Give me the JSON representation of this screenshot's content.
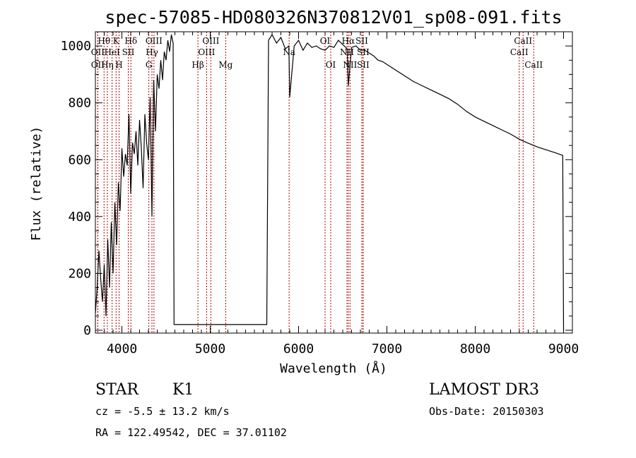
{
  "chart_data": {
    "type": "line",
    "title": "spec-57085-HD080326N370812V01_sp08-091.fits",
    "xlabel": "Wavelength (Å)",
    "ylabel": "Flux (relative)",
    "xlim": [
      3700,
      9100
    ],
    "ylim": [
      -10,
      1050
    ],
    "x_ticks": [
      4000,
      5000,
      6000,
      7000,
      8000,
      9000
    ],
    "y_ticks": [
      0,
      200,
      400,
      600,
      800,
      1000
    ],
    "gap": [
      4590,
      5640
    ],
    "series": [
      {
        "name": "spectrum",
        "x": [
          3700,
          3720,
          3740,
          3760,
          3780,
          3800,
          3820,
          3840,
          3860,
          3880,
          3900,
          3920,
          3940,
          3960,
          3980,
          4000,
          4020,
          4040,
          4060,
          4080,
          4100,
          4120,
          4140,
          4160,
          4180,
          4200,
          4220,
          4240,
          4260,
          4280,
          4300,
          4320,
          4340,
          4360,
          4380,
          4400,
          4420,
          4440,
          4460,
          4480,
          4500,
          4520,
          4540,
          4560,
          4580,
          4590,
          5640,
          5660,
          5700,
          5750,
          5800,
          5850,
          5890,
          5900,
          5950,
          6000,
          6050,
          6100,
          6150,
          6200,
          6250,
          6300,
          6350,
          6400,
          6450,
          6500,
          6550,
          6563,
          6600,
          6650,
          6700,
          6750,
          6800,
          6850,
          6900,
          6950,
          7000,
          7100,
          7200,
          7300,
          7400,
          7500,
          7600,
          7700,
          7800,
          7900,
          8000,
          8100,
          8200,
          8300,
          8400,
          8500,
          8600,
          8700,
          8800,
          8900,
          8990,
          9000
        ],
        "y": [
          60,
          150,
          280,
          180,
          100,
          230,
          50,
          320,
          150,
          380,
          200,
          450,
          300,
          520,
          420,
          640,
          540,
          620,
          580,
          760,
          480,
          660,
          620,
          700,
          580,
          740,
          640,
          500,
          760,
          660,
          600,
          820,
          400,
          880,
          700,
          900,
          850,
          950,
          880,
          980,
          950,
          1020,
          980,
          1040,
          1010,
          20,
          20,
          1020,
          1040,
          1010,
          1030,
          990,
          1000,
          820,
          1000,
          1020,
          985,
          1010,
          995,
          1000,
          990,
          985,
          1000,
          995,
          1020,
          1005,
          990,
          860,
          995,
          1000,
          985,
          985,
          975,
          965,
          950,
          945,
          935,
          915,
          895,
          875,
          860,
          845,
          830,
          815,
          795,
          770,
          750,
          735,
          720,
          705,
          690,
          672,
          658,
          645,
          635,
          625,
          615,
          0
        ]
      }
    ],
    "lines": [
      {
        "label": "Hθ",
        "wl": 3798,
        "row": 1
      },
      {
        "label": "OII",
        "wl": 3727,
        "row": 2
      },
      {
        "label": "OII",
        "wl": 3727,
        "row": 3
      },
      {
        "label": "Hη",
        "wl": 3835,
        "row": 3
      },
      {
        "label": "HeI",
        "wl": 3889,
        "row": 2
      },
      {
        "label": "K",
        "wl": 3934,
        "row": 1
      },
      {
        "label": "H",
        "wl": 3968,
        "row": 3
      },
      {
        "label": "SII",
        "wl": 4072,
        "row": 2
      },
      {
        "label": "Hδ",
        "wl": 4102,
        "row": 1
      },
      {
        "label": "OIII",
        "wl": 4363,
        "row": 1
      },
      {
        "label": "Hγ",
        "wl": 4340,
        "row": 2
      },
      {
        "label": "G",
        "wl": 4305,
        "row": 3
      },
      {
        "label": "Hβ",
        "wl": 4861,
        "row": 3
      },
      {
        "label": "OIII",
        "wl": 4959,
        "row": 2
      },
      {
        "label": "OIII",
        "wl": 5007,
        "row": 1
      },
      {
        "label": "Mg",
        "wl": 5175,
        "row": 3
      },
      {
        "label": "Na",
        "wl": 5893,
        "row": 2
      },
      {
        "label": "OI",
        "wl": 6300,
        "row": 1
      },
      {
        "label": "OI",
        "wl": 6364,
        "row": 3
      },
      {
        "label": "Hα",
        "wl": 6563,
        "row": 1
      },
      {
        "label": "NII",
        "wl": 6548,
        "row": 2
      },
      {
        "label": "NII",
        "wl": 6583,
        "row": 3
      },
      {
        "label": "SII",
        "wl": 6716,
        "row": 1
      },
      {
        "label": "SII",
        "wl": 6731,
        "row": 2
      },
      {
        "label": "SII",
        "wl": 6731,
        "row": 3
      },
      {
        "label": "CaII",
        "wl": 8542,
        "row": 1
      },
      {
        "label": "CaII",
        "wl": 8498,
        "row": 2
      },
      {
        "label": "CaII",
        "wl": 8662,
        "row": 3
      }
    ]
  },
  "info": {
    "star_type": "STAR",
    "subclass": "K1",
    "survey": "LAMOST DR3",
    "cz": "cz = -5.5 ± 13.2 km/s",
    "obs_date": "Obs-Date: 20150303",
    "radec": "RA = 122.49542, DEC =  37.01102"
  },
  "colors": {
    "spectrum": "#000000",
    "line_marker": "#b00000"
  }
}
